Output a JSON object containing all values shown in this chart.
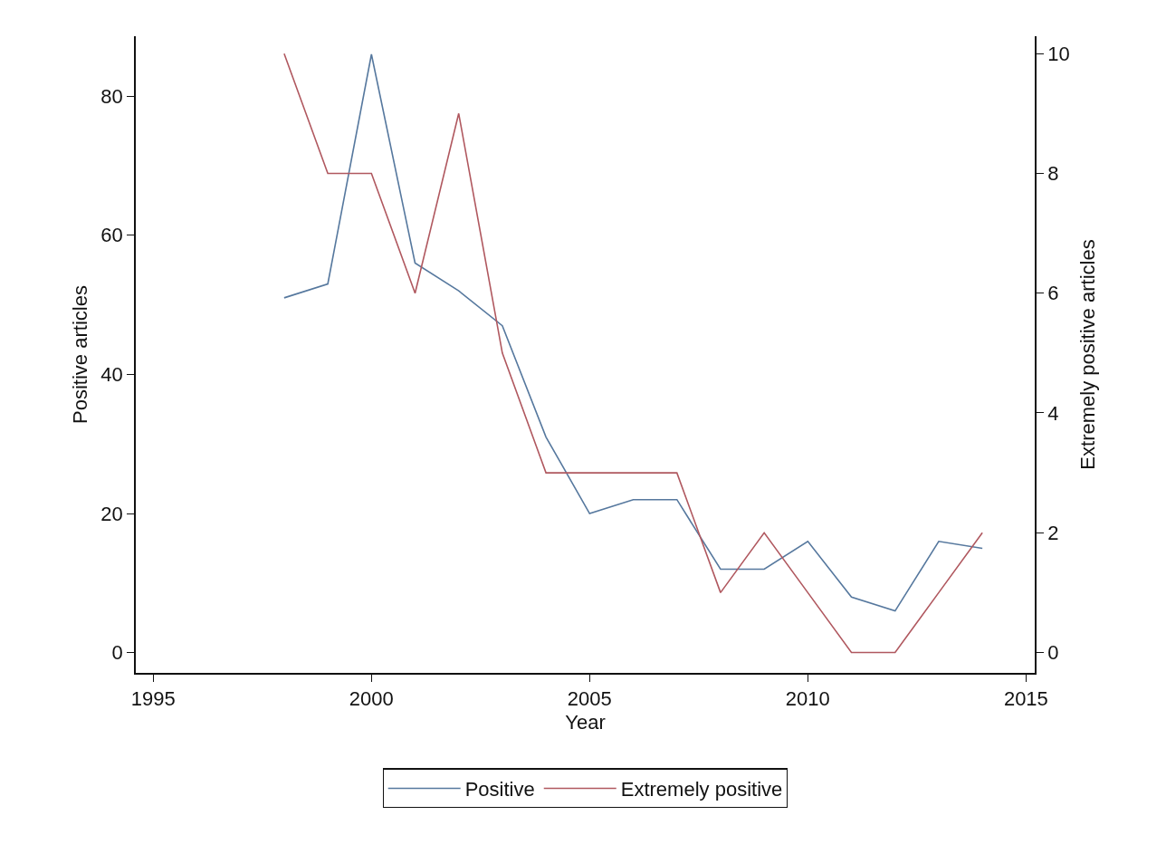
{
  "chart_data": {
    "type": "line",
    "xlabel": "Year",
    "ylabel": "Positive articles",
    "y2label": "Extremely positive articles",
    "x": [
      1998,
      1999,
      2000,
      2001,
      2002,
      2003,
      2004,
      2005,
      2006,
      2007,
      2008,
      2009,
      2010,
      2011,
      2012,
      2013,
      2014
    ],
    "series": [
      {
        "name": "Positive",
        "color": "#56789e",
        "values": [
          51,
          53,
          86,
          56,
          52,
          47,
          31,
          20,
          22,
          22,
          12,
          12,
          16,
          8,
          6,
          16,
          15
        ]
      },
      {
        "name": "Extremely positive",
        "color": "#b0585f",
        "axis": "y2",
        "values": [
          10,
          8,
          8,
          6,
          9,
          5,
          3,
          3,
          3,
          3,
          1,
          2,
          1,
          0,
          0,
          1,
          2
        ]
      }
    ],
    "xlim": [
      1994.6,
      2015.2
    ],
    "xticks": [
      1995,
      2000,
      2005,
      2010,
      2015
    ],
    "ylim": [
      -2.9,
      88.6
    ],
    "yticks": [
      0,
      20,
      40,
      60,
      80
    ],
    "y2lim": [
      -0.34,
      10.29
    ],
    "y2ticks": [
      0,
      2,
      4,
      6,
      8,
      10
    ],
    "grid": false,
    "legend": "bottom",
    "marker": "none",
    "line_style": "solid"
  }
}
